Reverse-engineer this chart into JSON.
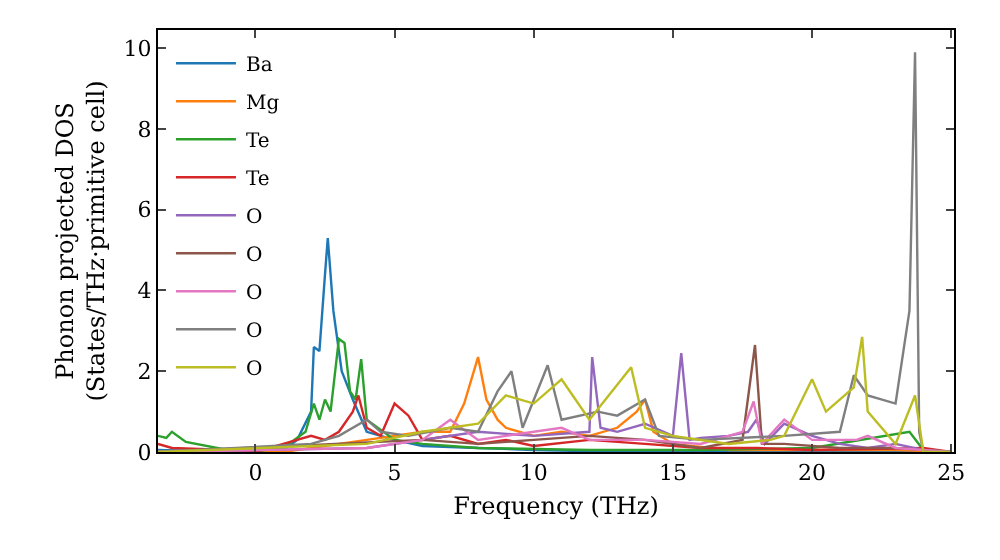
{
  "chart_data": {
    "type": "line",
    "xlabel": "Frequency (THz)",
    "ylabel": "Phonon projected DOS\n(States/THz·primitive cell)",
    "xlim": [
      -3.5,
      25.1
    ],
    "ylim": [
      0,
      10.45
    ],
    "xticks": [
      0,
      5,
      10,
      15,
      20,
      25
    ],
    "yticks": [
      0,
      2,
      4,
      6,
      8,
      10
    ],
    "grid": false,
    "legend": "top left",
    "series": [
      {
        "name": "Ba",
        "color": "#1f77b4",
        "x": [
          -3.5,
          -2,
          0,
          1,
          1.5,
          2,
          2.1,
          2.3,
          2.5,
          2.6,
          2.8,
          3.1,
          3.5,
          4,
          5,
          6,
          8,
          10,
          12,
          14,
          25
        ],
        "values": [
          0.05,
          0.02,
          0,
          0.05,
          0.3,
          1.0,
          2.6,
          2.5,
          4.4,
          5.3,
          3.5,
          2.0,
          1.3,
          0.5,
          0.3,
          0.15,
          0.1,
          0.05,
          0.02,
          0.01,
          0
        ]
      },
      {
        "name": "Mg",
        "color": "#ff7f0e",
        "x": [
          -3.5,
          1,
          2,
          4,
          5,
          6,
          7,
          7.5,
          8,
          8.3,
          8.7,
          9,
          10,
          11,
          12,
          13,
          13.7,
          14,
          14.3,
          15,
          17,
          20,
          23,
          25
        ],
        "values": [
          0,
          0,
          0.1,
          0.3,
          0.4,
          0.5,
          0.5,
          1.2,
          2.35,
          1.3,
          0.8,
          0.6,
          0.4,
          0.5,
          0.4,
          0.6,
          1.0,
          1.3,
          0.5,
          0.2,
          0.05,
          0.05,
          0.05,
          0
        ]
      },
      {
        "name": "Te",
        "color": "#2ca02c",
        "x": [
          -3.5,
          -3.2,
          -3,
          -2.5,
          -1,
          0,
          1,
          1.8,
          2.1,
          2.3,
          2.5,
          2.7,
          3,
          3.2,
          3.4,
          3.6,
          3.8,
          4,
          5,
          6,
          8,
          12,
          16,
          20,
          23.5,
          24,
          25
        ],
        "values": [
          0.4,
          0.35,
          0.5,
          0.25,
          0.05,
          0.02,
          0.1,
          0.5,
          1.2,
          0.8,
          1.3,
          1.0,
          2.8,
          2.7,
          1.5,
          1.3,
          2.3,
          0.8,
          0.3,
          0.2,
          0.1,
          0.05,
          0.05,
          0.1,
          0.5,
          0.05,
          0
        ]
      },
      {
        "name": "Te",
        "color": "#d62728",
        "x": [
          -3.5,
          -3,
          -1,
          0,
          1,
          2,
          2.5,
          3,
          3.5,
          3.7,
          4,
          4.5,
          5,
          5.5,
          6,
          7,
          8,
          9,
          10,
          12,
          14,
          16,
          18,
          20,
          24,
          25
        ],
        "values": [
          0.2,
          0.1,
          0.05,
          0,
          0.2,
          0.4,
          0.3,
          0.5,
          1.0,
          1.4,
          0.6,
          0.4,
          1.2,
          0.9,
          0.3,
          0.4,
          0.2,
          0.3,
          0.15,
          0.3,
          0.2,
          0.1,
          0.1,
          0.05,
          0.1,
          0
        ]
      },
      {
        "name": "O",
        "color": "#9467bd",
        "x": [
          -3.5,
          4,
          6,
          8,
          10,
          12,
          12.1,
          12.4,
          13,
          14,
          15,
          15.3,
          15.6,
          16,
          17,
          17.7,
          18,
          18.3,
          19,
          20,
          21,
          22,
          23,
          24,
          25
        ],
        "values": [
          0,
          0.1,
          0.3,
          0.5,
          0.4,
          0.5,
          2.35,
          0.6,
          0.5,
          0.7,
          0.4,
          2.45,
          0.3,
          0.35,
          0.4,
          0.5,
          0.8,
          0.2,
          0.7,
          0.4,
          0.2,
          0.1,
          0.2,
          0.05,
          0
        ]
      },
      {
        "name": "O",
        "color": "#8c564b",
        "x": [
          -3.5,
          6,
          8,
          10,
          12,
          14,
          16,
          17.5,
          17.95,
          18.2,
          19,
          21,
          23,
          24,
          25
        ],
        "values": [
          0,
          0.3,
          0.2,
          0.3,
          0.4,
          0.3,
          0.1,
          0.3,
          2.65,
          0.2,
          0.2,
          0.1,
          0.1,
          0.05,
          0
        ]
      },
      {
        "name": "O",
        "color": "#e377c2",
        "x": [
          -3.5,
          4,
          6,
          7,
          8,
          9,
          11,
          12,
          14,
          16,
          17.5,
          17.9,
          18.2,
          19,
          20,
          21.6,
          22,
          23,
          24,
          25
        ],
        "values": [
          0,
          0.1,
          0.3,
          0.8,
          0.3,
          0.4,
          0.6,
          0.3,
          0.3,
          0.2,
          0.5,
          1.25,
          0.2,
          0.8,
          0.3,
          0.3,
          0.4,
          0.1,
          0.05,
          0
        ]
      },
      {
        "name": "O",
        "color": "#7f7f7f",
        "x": [
          -3.5,
          2,
          3,
          4,
          4.5,
          5.5,
          7,
          8,
          8.7,
          9.2,
          9.6,
          10.5,
          11,
          12.3,
          13,
          14,
          14.5,
          16,
          19,
          21,
          21.5,
          22,
          23,
          23.5,
          23.7,
          23.85,
          24,
          25
        ],
        "values": [
          0,
          0.2,
          0.4,
          0.8,
          0.5,
          0.4,
          0.6,
          0.5,
          1.5,
          2.0,
          0.6,
          2.15,
          0.8,
          1.0,
          0.9,
          1.3,
          0.4,
          0.3,
          0.4,
          0.5,
          1.9,
          1.4,
          1.2,
          3.5,
          9.9,
          0.5,
          0,
          0
        ]
      },
      {
        "name": "O",
        "color": "#bcbd22",
        "x": [
          -3.5,
          4,
          6,
          8,
          9,
          10,
          11,
          12,
          13.5,
          14,
          15,
          17,
          18.5,
          19,
          20,
          20.5,
          21.5,
          21.8,
          22,
          23,
          23.7,
          24,
          25
        ],
        "values": [
          0,
          0.2,
          0.5,
          0.7,
          1.4,
          1.2,
          1.8,
          0.8,
          2.1,
          0.6,
          0.4,
          0.2,
          0.3,
          0.4,
          1.8,
          1.0,
          1.6,
          2.85,
          1.0,
          0.2,
          1.4,
          0,
          0
        ]
      }
    ]
  }
}
